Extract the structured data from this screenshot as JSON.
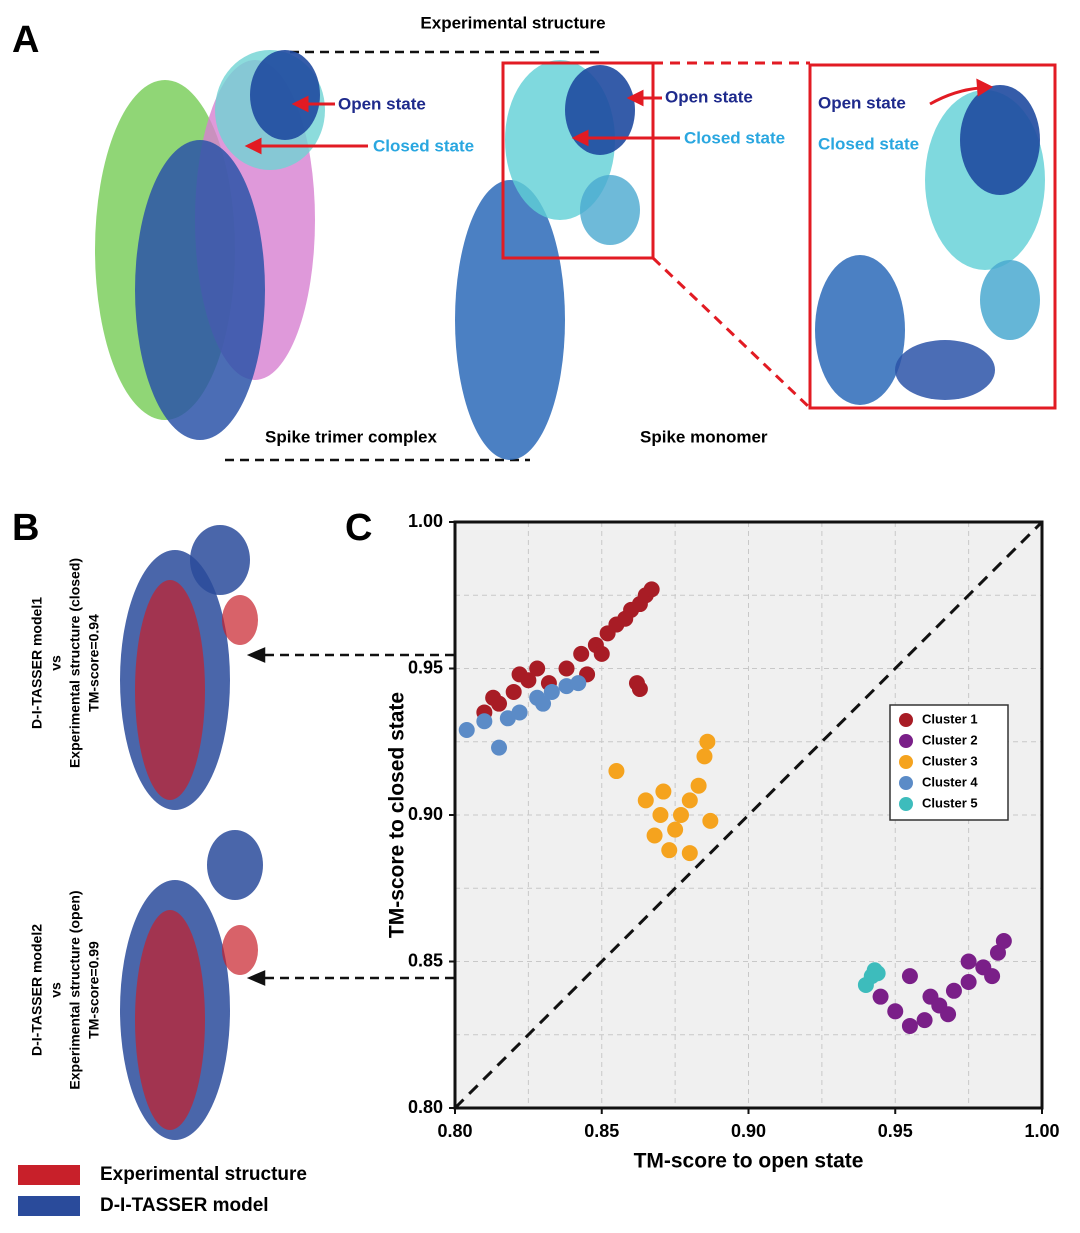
{
  "panels": {
    "a": "A",
    "b": "B",
    "c": "C"
  },
  "panel_a": {
    "top_label": "Experimental structure",
    "open_labels": [
      "Open state",
      "Open state",
      "Open state"
    ],
    "closed_labels": [
      "Closed state",
      "Closed state",
      "Closed state"
    ],
    "trimer_label": "Spike trimer complex",
    "monomer_label": "Spike monomer"
  },
  "panel_b": {
    "model1": [
      "D-I-TASSER model1",
      "vs",
      "Experimental structure (closed)",
      "TM-score=0.94"
    ],
    "model2": [
      "D-I-TASSER model2",
      "vs",
      "Experimental structure (open)",
      "TM-score=0.99"
    ],
    "legend": [
      {
        "name": "Experimental structure",
        "color": "#c8202a"
      },
      {
        "name": "D-I-TASSER model",
        "color": "#2a4b9b"
      }
    ]
  },
  "chart_data": {
    "type": "scatter",
    "xlabel": "TM-score to open state",
    "ylabel": "TM-score to closed state",
    "xlim": [
      0.8,
      1.0
    ],
    "ylim": [
      0.8,
      1.0
    ],
    "xticks": [
      {
        "value": 0.8,
        "label": "0.80"
      },
      0.85,
      {
        "value": 0.9,
        "label": "0.90"
      },
      0.95,
      {
        "value": 1.0,
        "label": "1.00"
      }
    ],
    "yticks": [
      {
        "value": 0.8,
        "label": "0.80"
      },
      0.85,
      {
        "value": 0.9,
        "label": "0.90"
      },
      0.95,
      {
        "value": 1.0,
        "label": "1.00"
      }
    ],
    "minor_grid": [
      0.825,
      0.875,
      0.925,
      0.975
    ],
    "grid": true,
    "legend": "center right",
    "series": [
      {
        "name": "Cluster 1",
        "color": "#a81c25",
        "x": [
          0.81,
          0.813,
          0.815,
          0.82,
          0.822,
          0.825,
          0.828,
          0.832,
          0.838,
          0.843,
          0.845,
          0.848,
          0.85,
          0.852,
          0.855,
          0.858,
          0.86,
          0.863,
          0.865,
          0.867,
          0.862,
          0.863
        ],
        "values": [
          0.935,
          0.94,
          0.938,
          0.942,
          0.948,
          0.946,
          0.95,
          0.945,
          0.95,
          0.955,
          0.948,
          0.958,
          0.955,
          0.962,
          0.965,
          0.967,
          0.97,
          0.972,
          0.975,
          0.977,
          0.945,
          0.943
        ]
      },
      {
        "name": "Cluster 2",
        "color": "#7a1f88",
        "x": [
          0.945,
          0.95,
          0.955,
          0.955,
          0.96,
          0.962,
          0.965,
          0.968,
          0.97,
          0.975,
          0.975,
          0.98,
          0.983,
          0.985,
          0.987
        ],
        "values": [
          0.838,
          0.833,
          0.828,
          0.845,
          0.83,
          0.838,
          0.835,
          0.832,
          0.84,
          0.843,
          0.85,
          0.848,
          0.845,
          0.853,
          0.857
        ]
      },
      {
        "name": "Cluster 3",
        "color": "#f5a31e",
        "x": [
          0.855,
          0.865,
          0.868,
          0.87,
          0.871,
          0.873,
          0.875,
          0.877,
          0.88,
          0.88,
          0.883,
          0.885,
          0.886,
          0.887
        ],
        "values": [
          0.915,
          0.905,
          0.893,
          0.9,
          0.908,
          0.888,
          0.895,
          0.9,
          0.905,
          0.887,
          0.91,
          0.92,
          0.925,
          0.898
        ]
      },
      {
        "name": "Cluster 4",
        "color": "#5b8bc7",
        "x": [
          0.804,
          0.81,
          0.815,
          0.818,
          0.822,
          0.828,
          0.83,
          0.833,
          0.838,
          0.842
        ],
        "values": [
          0.929,
          0.932,
          0.923,
          0.933,
          0.935,
          0.94,
          0.938,
          0.942,
          0.944,
          0.945
        ]
      },
      {
        "name": "Cluster 5",
        "color": "#3dbcbc",
        "x": [
          0.94,
          0.942,
          0.943,
          0.944
        ],
        "values": [
          0.842,
          0.845,
          0.847,
          0.846
        ]
      }
    ]
  }
}
